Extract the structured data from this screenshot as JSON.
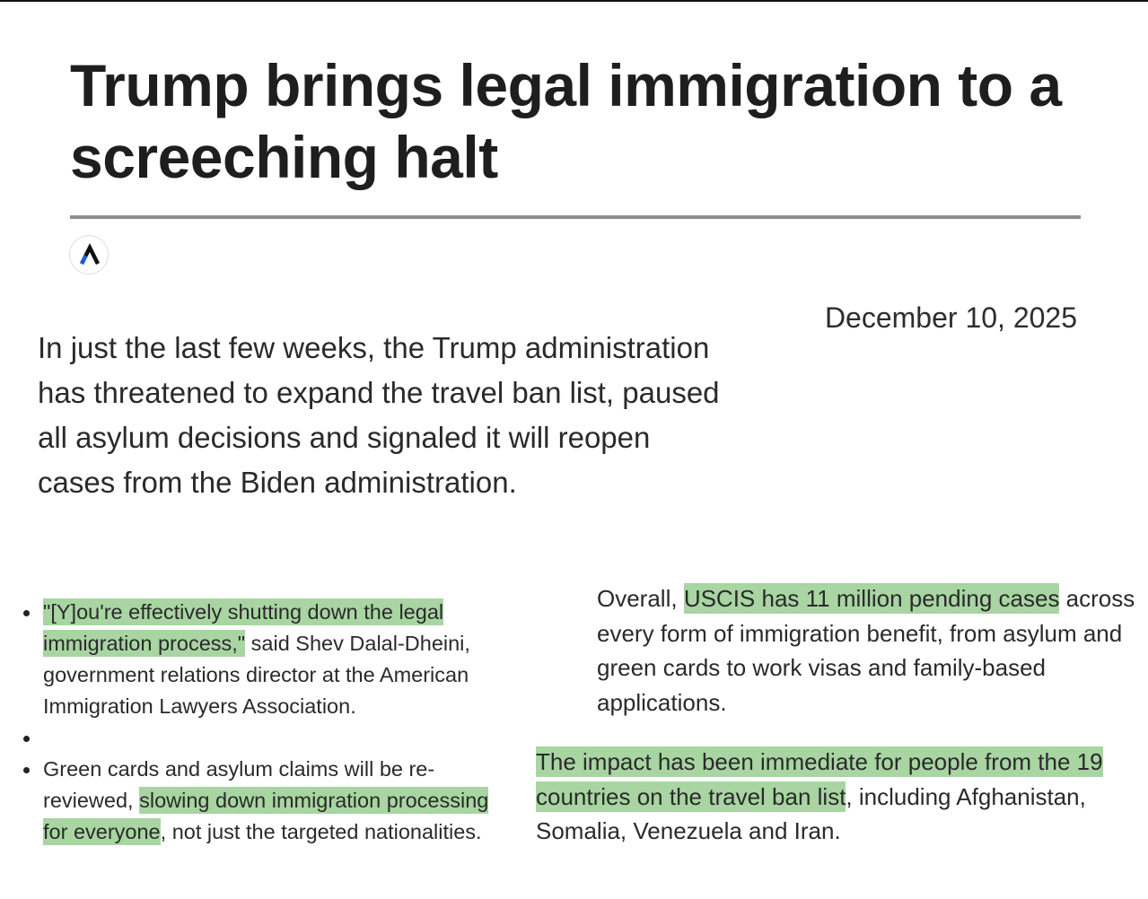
{
  "article": {
    "headline": "Trump brings legal immigration to a screeching halt",
    "publisher_logo_icon": "axios-logo-icon",
    "date": "December 10, 2025",
    "lede": "In just the last few weeks, the Trump administration has threatened to expand the travel ban list, paused all asylum decisions and signaled it will reopen cases from the Biden administration."
  },
  "bullets": [
    {
      "highlight": "\"[Y]ou're effectively shutting down the legal immigration process,\"",
      "rest": " said Shev Dalal-Dheini, government relations director at the American Immigration Lawyers Association."
    },
    {
      "before": "Green cards and asylum claims will be re-reviewed, ",
      "highlight": "slowing down immigration processing for everyone",
      "after": ", not just the targeted nationalities."
    }
  ],
  "paragraphs": [
    {
      "before": "Overall, ",
      "highlight": "USCIS has 11 million pending cases",
      "after": " across every form of immigration benefit, from asylum and green cards to work visas and family-based applications."
    },
    {
      "highlight": "The impact has been immediate for people from the 19 countries on the travel ban list",
      "after": ", including Afghanistan, Somalia, Venezuela and Iran."
    }
  ],
  "colors": {
    "highlight": "#a8d5a2",
    "text": "#222222",
    "divider": "#8e8e8e",
    "logo_blue": "#1f5fd6"
  }
}
